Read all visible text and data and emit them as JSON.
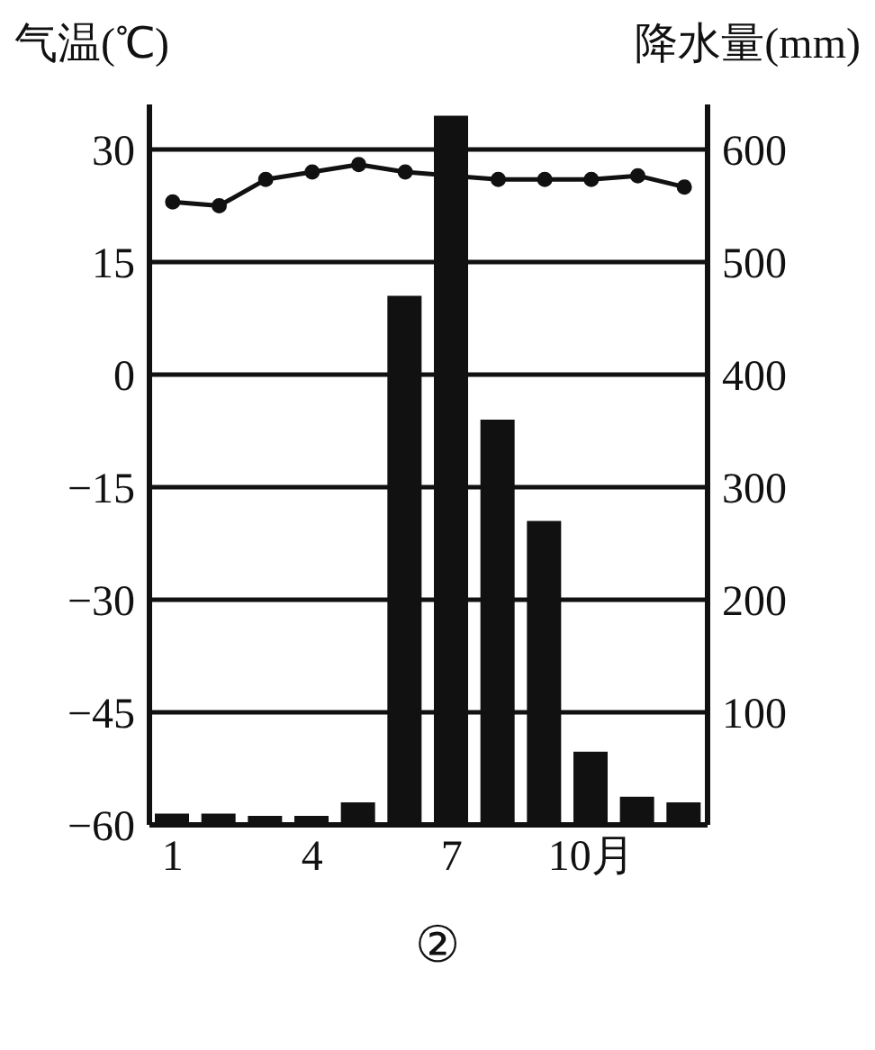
{
  "chart_data": {
    "type": "bar",
    "ylabel": "气温(℃)",
    "y2label": "降水量(mm)",
    "categories": [
      "1",
      null,
      null,
      "4",
      null,
      null,
      "7",
      null,
      null,
      "10月",
      null,
      null
    ],
    "series": [
      {
        "axis": "y2",
        "color": "#111111",
        "values": [
          10,
          10,
          8,
          8,
          20,
          470,
          630,
          360,
          270,
          65,
          25,
          20
        ]
      },
      {
        "type": "line",
        "color": "#111111",
        "marker": "circle",
        "values": [
          23,
          22.5,
          26,
          27,
          28,
          27,
          null,
          26,
          26,
          26,
          26.5,
          25
        ]
      }
    ],
    "ylim": [
      -60,
      36
    ],
    "yticks": [
      -60,
      -45,
      -30,
      -15,
      0,
      15,
      30
    ],
    "y2lim": [
      0,
      640
    ],
    "y2ticks": [
      100,
      200,
      300,
      400,
      500,
      600
    ],
    "grid": "y",
    "annotations": [
      "②"
    ]
  }
}
